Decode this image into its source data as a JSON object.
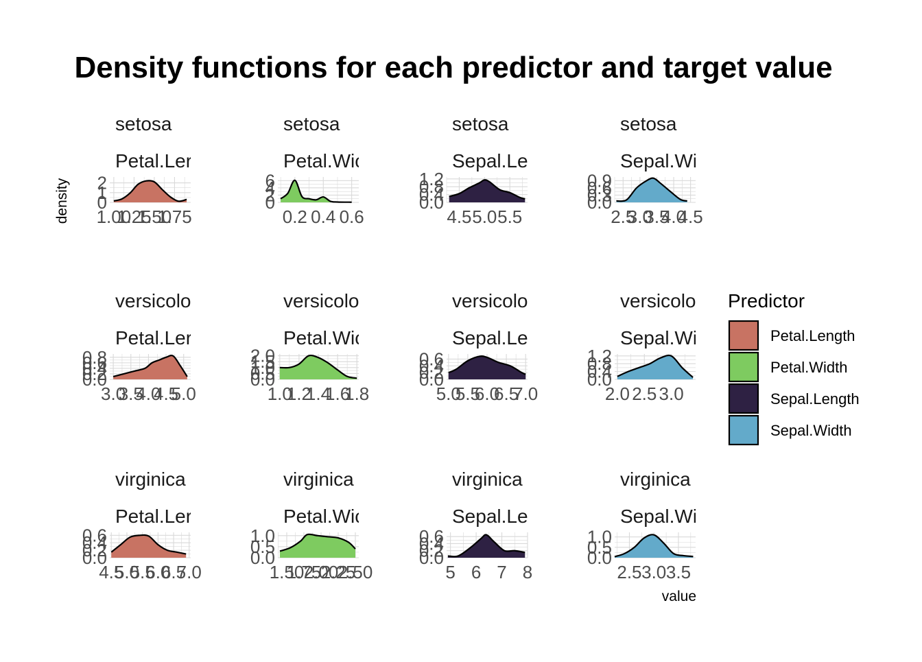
{
  "chart_data": {
    "type": "area",
    "title": "Density functions for each predictor and target value",
    "xlabel": "value",
    "ylabel": "density",
    "grid": true,
    "legend_position": "right",
    "legend": {
      "title": "Predictor",
      "entries": [
        {
          "label": "Petal.Length",
          "color": "#C87363"
        },
        {
          "label": "Petal.Width",
          "color": "#7ECB60"
        },
        {
          "label": "Sepal.Length",
          "color": "#2E2143"
        },
        {
          "label": "Sepal.Width",
          "color": "#63AACA"
        }
      ]
    },
    "panels": [
      {
        "species": "setosa",
        "predictor": "Petal.Ler",
        "predictor_full": "Petal.Length",
        "color": "#C87363",
        "xlim": [
          0.95,
          1.95
        ],
        "ylim": [
          0,
          2.6
        ],
        "xticks": [
          1.0,
          1.25,
          1.5,
          1.75
        ],
        "xtick_labels": [
          "1.00",
          "1.25",
          "1.50",
          "1.75"
        ],
        "yticks": [
          0,
          1,
          2
        ],
        "ytick_labels": [
          "0",
          "1",
          "2"
        ],
        "x": [
          1.0,
          1.1,
          1.2,
          1.3,
          1.4,
          1.5,
          1.6,
          1.7,
          1.8,
          1.9
        ],
        "y": [
          0.15,
          0.35,
          0.95,
          1.85,
          2.2,
          2.1,
          1.3,
          0.55,
          0.12,
          0.3
        ]
      },
      {
        "species": "setosa",
        "predictor": "Petal.Wic",
        "predictor_full": "Petal.Width",
        "color": "#7ECB60",
        "xlim": [
          0.08,
          0.65
        ],
        "ylim": [
          0,
          7
        ],
        "xticks": [
          0.2,
          0.4,
          0.6
        ],
        "xtick_labels": [
          "0.2",
          "0.4",
          "0.6"
        ],
        "yticks": [
          0,
          2,
          4,
          6
        ],
        "ytick_labels": [
          "0",
          "2",
          "4",
          "6"
        ],
        "x": [
          0.1,
          0.15,
          0.2,
          0.25,
          0.3,
          0.35,
          0.4,
          0.45,
          0.5,
          0.6
        ],
        "y": [
          1.0,
          2.5,
          6.1,
          1.6,
          1.0,
          0.7,
          1.5,
          0.3,
          0.1,
          0.05
        ]
      },
      {
        "species": "setosa",
        "predictor": "Sepal.Le",
        "predictor_full": "Sepal.Length",
        "color": "#2E2143",
        "xlim": [
          4.25,
          5.85
        ],
        "ylim": [
          0,
          1.3
        ],
        "xticks": [
          4.5,
          5.0,
          5.5
        ],
        "xtick_labels": [
          "4.5",
          "5.0",
          "5.5"
        ],
        "yticks": [
          0.0,
          0.4,
          0.8,
          1.2
        ],
        "ytick_labels": [
          "0.0",
          "0.4",
          "0.8",
          "1.2"
        ],
        "x": [
          4.3,
          4.5,
          4.7,
          4.9,
          5.0,
          5.1,
          5.3,
          5.5,
          5.7,
          5.8
        ],
        "y": [
          0.3,
          0.45,
          0.75,
          1.0,
          1.15,
          1.05,
          0.65,
          0.5,
          0.25,
          0.18
        ]
      },
      {
        "species": "setosa",
        "predictor": "Sepal.Wi",
        "predictor_full": "Sepal.Width",
        "color": "#63AACA",
        "xlim": [
          2.25,
          4.65
        ],
        "ylim": [
          0,
          1.05
        ],
        "xticks": [
          2.5,
          3.0,
          3.5,
          4.0,
          4.5
        ],
        "xtick_labels": [
          "2.5",
          "3.0",
          "3.5",
          "4.0",
          "4.5"
        ],
        "yticks": [
          0.0,
          0.3,
          0.6,
          0.9
        ],
        "ytick_labels": [
          "0.0",
          "0.3",
          "0.6",
          "0.9"
        ],
        "x": [
          2.3,
          2.6,
          2.9,
          3.2,
          3.4,
          3.6,
          3.9,
          4.2,
          4.4
        ],
        "y": [
          0.06,
          0.1,
          0.6,
          0.9,
          1.0,
          0.8,
          0.45,
          0.12,
          0.06
        ]
      },
      {
        "species": "versicolo",
        "predictor": "Petal.Ler",
        "predictor_full": "Petal.Length",
        "color": "#C87363",
        "xlim": [
          2.9,
          5.2
        ],
        "ylim": [
          0,
          0.92
        ],
        "xticks": [
          3.0,
          3.5,
          4.0,
          4.5,
          5.0
        ],
        "xtick_labels": [
          "3.0",
          "3.5",
          "4.0",
          "4.5",
          "5.0"
        ],
        "yticks": [
          0.0,
          0.2,
          0.4,
          0.6,
          0.8
        ],
        "ytick_labels": [
          "0.0",
          "0.2",
          "0.4",
          "0.6",
          "0.8"
        ],
        "x": [
          3.0,
          3.3,
          3.6,
          3.9,
          4.1,
          4.3,
          4.5,
          4.7,
          4.9,
          5.1
        ],
        "y": [
          0.1,
          0.2,
          0.3,
          0.4,
          0.6,
          0.7,
          0.8,
          0.85,
          0.5,
          0.1
        ]
      },
      {
        "species": "versicolo",
        "predictor": "Petal.Wic",
        "predictor_full": "Petal.Width",
        "color": "#7ECB60",
        "xlim": [
          0.98,
          1.82
        ],
        "ylim": [
          0,
          2.15
        ],
        "xticks": [
          1.0,
          1.2,
          1.4,
          1.6,
          1.8
        ],
        "xtick_labels": [
          "1.0",
          "1.2",
          "1.4",
          "1.6",
          "1.8"
        ],
        "yticks": [
          0.0,
          0.5,
          1.0,
          1.5,
          2.0
        ],
        "ytick_labels": [
          "0.0",
          "0.5",
          "1.0",
          "1.5",
          "2.0"
        ],
        "x": [
          1.0,
          1.1,
          1.2,
          1.3,
          1.4,
          1.5,
          1.6,
          1.7,
          1.8
        ],
        "y": [
          1.0,
          1.0,
          1.3,
          2.0,
          1.85,
          1.4,
          0.8,
          0.25,
          0.1
        ]
      },
      {
        "species": "versicolo",
        "predictor": "Sepal.Le",
        "predictor_full": "Sepal.Length",
        "color": "#2E2143",
        "xlim": [
          4.95,
          7.05
        ],
        "ylim": [
          0,
          0.75
        ],
        "xticks": [
          5.0,
          5.5,
          6.0,
          6.5,
          7.0
        ],
        "xtick_labels": [
          "5.0",
          "5.5",
          "6.0",
          "6.5",
          "7.0"
        ],
        "yticks": [
          0.0,
          0.2,
          0.4,
          0.6
        ],
        "ytick_labels": [
          "0.0",
          "0.2",
          "0.4",
          "0.6"
        ],
        "x": [
          5.0,
          5.2,
          5.5,
          5.8,
          6.0,
          6.3,
          6.6,
          6.9,
          7.0
        ],
        "y": [
          0.2,
          0.3,
          0.55,
          0.68,
          0.65,
          0.5,
          0.4,
          0.2,
          0.15
        ]
      },
      {
        "species": "versicolo",
        "predictor": "Sepal.Wi",
        "predictor_full": "Sepal.Width",
        "color": "#63AACA",
        "xlim": [
          1.95,
          3.45
        ],
        "ylim": [
          0,
          1.3
        ],
        "xticks": [
          2.0,
          2.5,
          3.0
        ],
        "xtick_labels": [
          "2.0",
          "2.5",
          "3.0"
        ],
        "yticks": [
          0.0,
          0.4,
          0.8,
          1.2
        ],
        "ytick_labels": [
          "0.0",
          "0.4",
          "0.8",
          "1.2"
        ],
        "x": [
          2.0,
          2.2,
          2.4,
          2.6,
          2.8,
          3.0,
          3.2,
          3.4
        ],
        "y": [
          0.15,
          0.4,
          0.6,
          0.8,
          1.1,
          1.2,
          0.6,
          0.1
        ]
      },
      {
        "species": "virginica",
        "predictor": "Petal.Ler",
        "predictor_full": "Petal.Length",
        "color": "#C87363",
        "xlim": [
          4.45,
          7.05
        ],
        "ylim": [
          0,
          0.68
        ],
        "xticks": [
          4.5,
          5.0,
          5.5,
          6.0,
          6.5,
          7.0
        ],
        "xtick_labels": [
          "4.5",
          "5.0",
          "5.5",
          "6.0",
          "6.5",
          "7.0"
        ],
        "yticks": [
          0.0,
          0.2,
          0.4,
          0.6
        ],
        "ytick_labels": [
          "0.0",
          "0.2",
          "0.4",
          "0.6"
        ],
        "x": [
          4.5,
          4.8,
          5.1,
          5.4,
          5.7,
          6.0,
          6.3,
          6.6,
          6.9
        ],
        "y": [
          0.15,
          0.35,
          0.55,
          0.6,
          0.58,
          0.35,
          0.2,
          0.15,
          0.1
        ]
      },
      {
        "species": "virginica",
        "predictor": "Petal.Wic",
        "predictor_full": "Petal.Width",
        "color": "#7ECB60",
        "xlim": [
          1.37,
          2.55
        ],
        "ylim": [
          0,
          1.15
        ],
        "xticks": [
          1.5,
          1.75,
          2.0,
          2.25,
          2.5
        ],
        "xtick_labels": [
          "1.50",
          "1.75",
          "2.00",
          "2.25",
          "2.50"
        ],
        "yticks": [
          0.0,
          0.5,
          1.0
        ],
        "ytick_labels": [
          "0.0",
          "0.5",
          "1.0"
        ],
        "x": [
          1.4,
          1.55,
          1.7,
          1.8,
          1.95,
          2.1,
          2.25,
          2.4,
          2.5
        ],
        "y": [
          0.3,
          0.45,
          0.75,
          1.05,
          1.0,
          0.95,
          0.9,
          0.7,
          0.4
        ]
      },
      {
        "species": "virginica",
        "predictor": "Sepal.Le",
        "predictor_full": "Sepal.Length",
        "color": "#2E2143",
        "xlim": [
          4.85,
          8.0
        ],
        "ylim": [
          0,
          0.72
        ],
        "xticks": [
          5,
          6,
          7,
          8
        ],
        "xtick_labels": [
          "5",
          "6",
          "7",
          "8"
        ],
        "yticks": [
          0.0,
          0.2,
          0.4,
          0.6
        ],
        "ytick_labels": [
          "0.0",
          "0.2",
          "0.4",
          "0.6"
        ],
        "x": [
          4.9,
          5.3,
          5.8,
          6.2,
          6.4,
          6.7,
          7.1,
          7.5,
          7.9
        ],
        "y": [
          0.05,
          0.05,
          0.3,
          0.55,
          0.65,
          0.45,
          0.2,
          0.2,
          0.15
        ]
      },
      {
        "species": "virginica",
        "predictor": "Sepal.Wi",
        "predictor_full": "Sepal.Width",
        "color": "#63AACA",
        "xlim": [
          2.2,
          3.85
        ],
        "ylim": [
          0,
          1.22
        ],
        "xticks": [
          2.5,
          3.0,
          3.5
        ],
        "xtick_labels": [
          "2.5",
          "3.0",
          "3.5"
        ],
        "yticks": [
          0.0,
          0.5,
          1.0
        ],
        "ytick_labels": [
          "0.0",
          "0.5",
          "1.0"
        ],
        "x": [
          2.2,
          2.4,
          2.6,
          2.8,
          3.0,
          3.2,
          3.4,
          3.6,
          3.8
        ],
        "y": [
          0.05,
          0.2,
          0.5,
          0.95,
          1.1,
          0.7,
          0.2,
          0.1,
          0.06
        ]
      }
    ]
  }
}
